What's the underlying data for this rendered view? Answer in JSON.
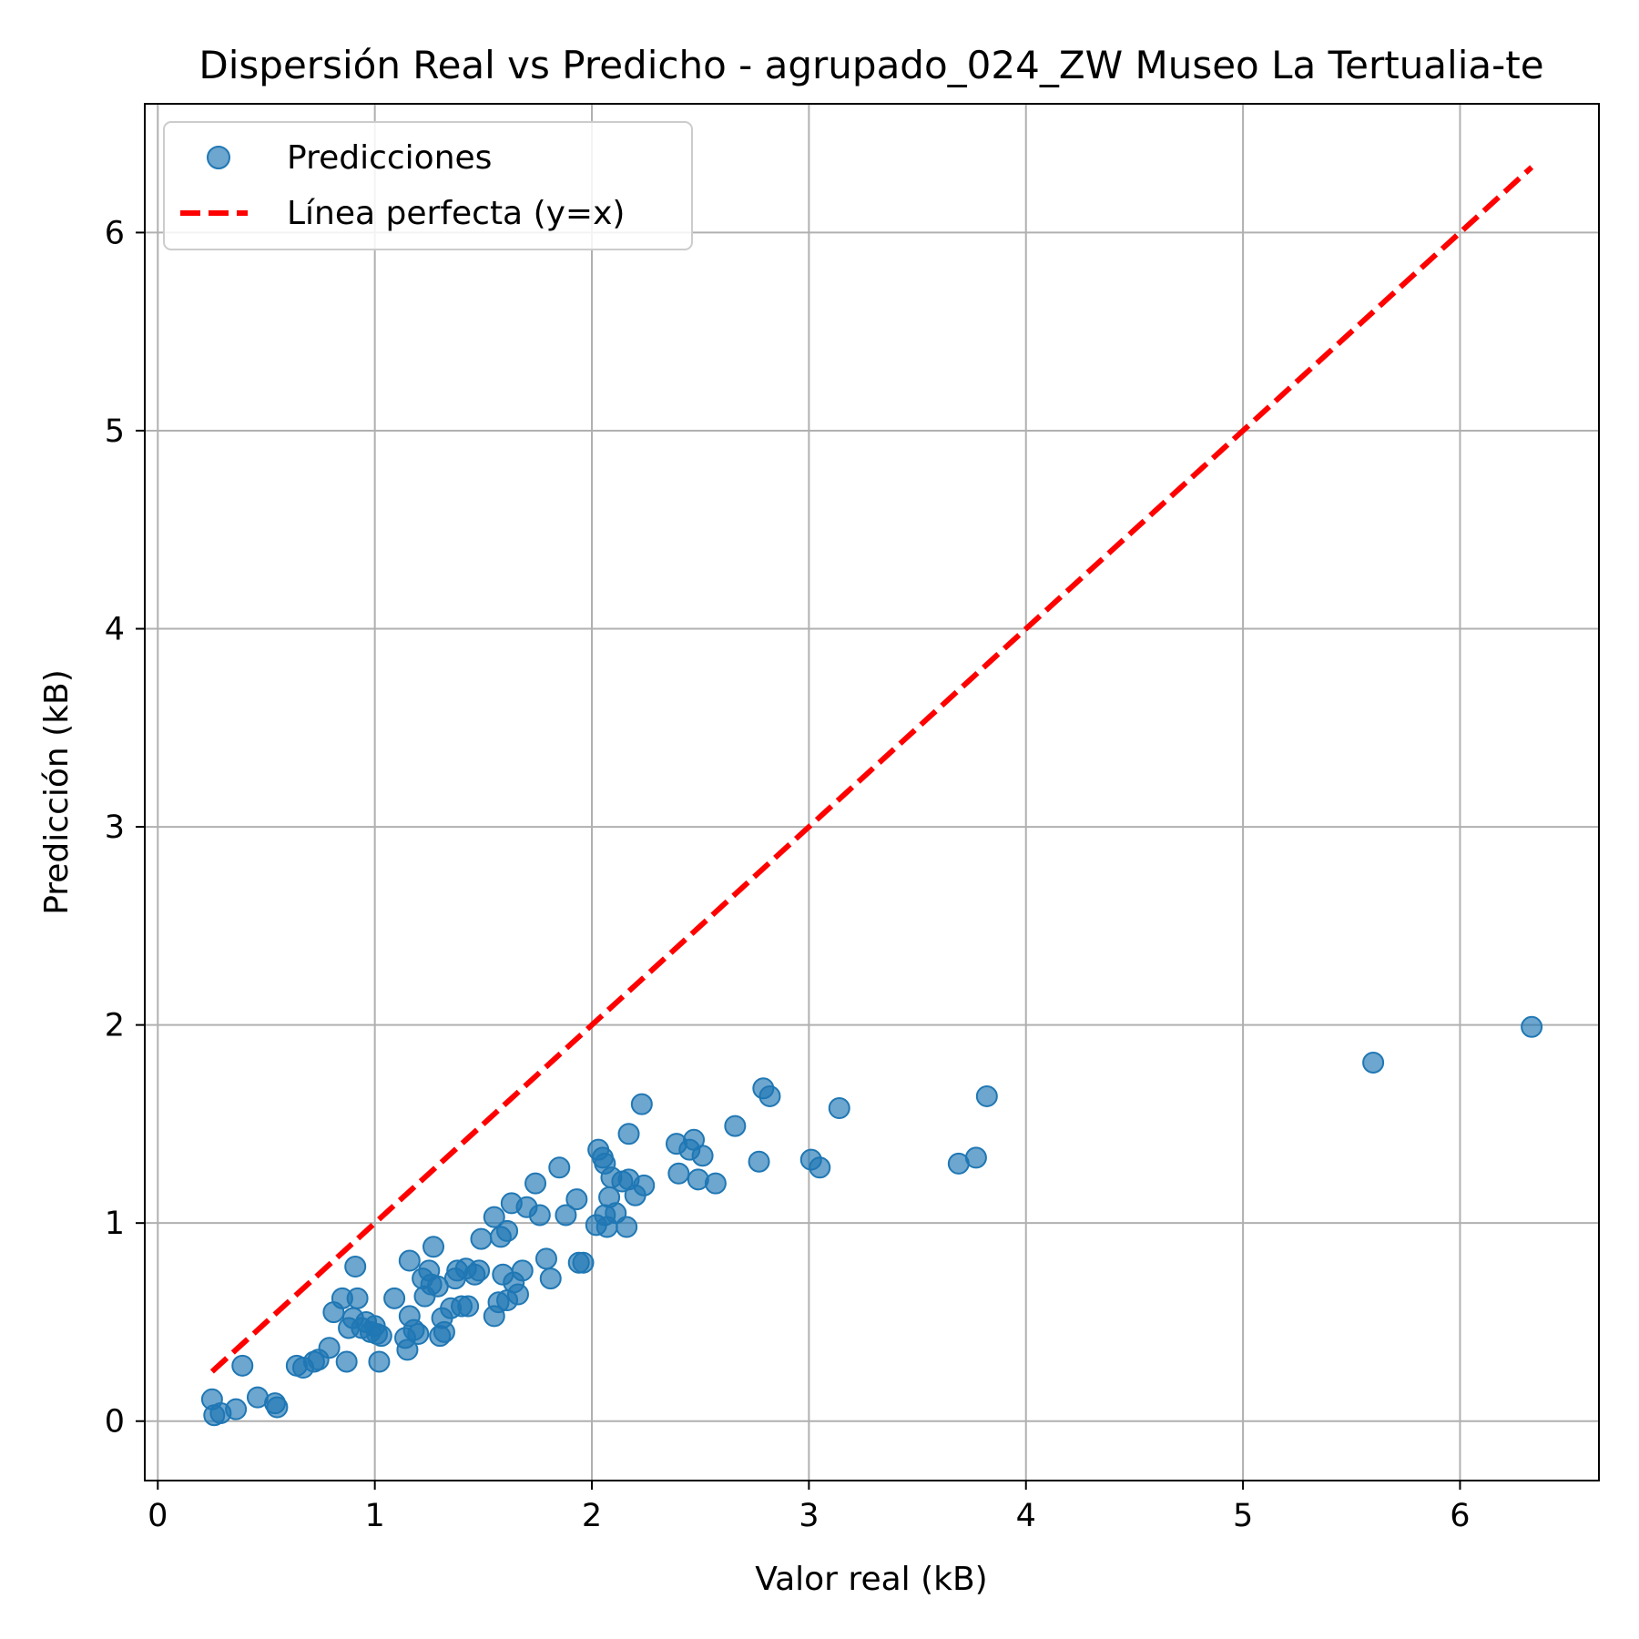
{
  "chart_data": {
    "type": "scatter",
    "title": "Dispersión Real vs Predicho - agrupado_024_ZW Museo La Tertualia-te",
    "xlabel": "Valor real (kB)",
    "ylabel": "Predicción (kB)",
    "xlim": [
      -0.06,
      6.64
    ],
    "ylim": [
      -0.3,
      6.65
    ],
    "xticks": [
      0,
      1,
      2,
      3,
      4,
      5,
      6
    ],
    "yticks": [
      0,
      1,
      2,
      3,
      4,
      5,
      6
    ],
    "grid": true,
    "legend_position": "top-left",
    "colors": {
      "points": "#1f77b4",
      "perfect_line": "#ff0000"
    },
    "series": [
      {
        "name": "Predicciones",
        "marker": "circle",
        "points": [
          [
            0.25,
            0.11
          ],
          [
            0.26,
            0.03
          ],
          [
            0.29,
            0.04
          ],
          [
            0.36,
            0.06
          ],
          [
            0.39,
            0.28
          ],
          [
            0.46,
            0.12
          ],
          [
            0.54,
            0.09
          ],
          [
            0.55,
            0.07
          ],
          [
            0.64,
            0.28
          ],
          [
            0.67,
            0.27
          ],
          [
            0.72,
            0.3
          ],
          [
            0.74,
            0.31
          ],
          [
            0.79,
            0.37
          ],
          [
            0.81,
            0.55
          ],
          [
            0.85,
            0.62
          ],
          [
            0.87,
            0.3
          ],
          [
            0.88,
            0.47
          ],
          [
            0.9,
            0.52
          ],
          [
            0.91,
            0.78
          ],
          [
            0.92,
            0.62
          ],
          [
            0.94,
            0.47
          ],
          [
            0.96,
            0.5
          ],
          [
            0.98,
            0.45
          ],
          [
            1.0,
            0.48
          ],
          [
            1.01,
            0.44
          ],
          [
            1.02,
            0.3
          ],
          [
            1.03,
            0.43
          ],
          [
            1.09,
            0.62
          ],
          [
            1.14,
            0.42
          ],
          [
            1.15,
            0.36
          ],
          [
            1.16,
            0.53
          ],
          [
            1.16,
            0.81
          ],
          [
            1.18,
            0.46
          ],
          [
            1.2,
            0.44
          ],
          [
            1.22,
            0.72
          ],
          [
            1.23,
            0.63
          ],
          [
            1.25,
            0.76
          ],
          [
            1.26,
            0.69
          ],
          [
            1.27,
            0.88
          ],
          [
            1.29,
            0.68
          ],
          [
            1.3,
            0.43
          ],
          [
            1.31,
            0.52
          ],
          [
            1.32,
            0.45
          ],
          [
            1.35,
            0.57
          ],
          [
            1.37,
            0.72
          ],
          [
            1.38,
            0.76
          ],
          [
            1.4,
            0.58
          ],
          [
            1.42,
            0.77
          ],
          [
            1.43,
            0.58
          ],
          [
            1.46,
            0.74
          ],
          [
            1.48,
            0.76
          ],
          [
            1.49,
            0.92
          ],
          [
            1.55,
            0.53
          ],
          [
            1.55,
            1.03
          ],
          [
            1.57,
            0.6
          ],
          [
            1.58,
            0.93
          ],
          [
            1.59,
            0.74
          ],
          [
            1.61,
            0.96
          ],
          [
            1.61,
            0.61
          ],
          [
            1.63,
            1.1
          ],
          [
            1.64,
            0.7
          ],
          [
            1.66,
            0.64
          ],
          [
            1.68,
            0.76
          ],
          [
            1.7,
            1.08
          ],
          [
            1.74,
            1.2
          ],
          [
            1.76,
            1.04
          ],
          [
            1.79,
            0.82
          ],
          [
            1.81,
            0.72
          ],
          [
            1.85,
            1.28
          ],
          [
            1.88,
            1.04
          ],
          [
            1.93,
            1.12
          ],
          [
            1.94,
            0.8
          ],
          [
            1.96,
            0.8
          ],
          [
            2.02,
            0.99
          ],
          [
            2.03,
            1.37
          ],
          [
            2.05,
            1.33
          ],
          [
            2.06,
            1.04
          ],
          [
            2.06,
            1.3
          ],
          [
            2.07,
            0.98
          ],
          [
            2.08,
            1.13
          ],
          [
            2.09,
            1.23
          ],
          [
            2.11,
            1.05
          ],
          [
            2.14,
            1.21
          ],
          [
            2.16,
            0.98
          ],
          [
            2.17,
            1.45
          ],
          [
            2.17,
            1.22
          ],
          [
            2.2,
            1.14
          ],
          [
            2.23,
            1.6
          ],
          [
            2.24,
            1.19
          ],
          [
            2.39,
            1.4
          ],
          [
            2.4,
            1.25
          ],
          [
            2.45,
            1.37
          ],
          [
            2.47,
            1.42
          ],
          [
            2.49,
            1.22
          ],
          [
            2.51,
            1.34
          ],
          [
            2.57,
            1.2
          ],
          [
            2.66,
            1.49
          ],
          [
            2.77,
            1.31
          ],
          [
            2.79,
            1.68
          ],
          [
            2.82,
            1.64
          ],
          [
            3.01,
            1.32
          ],
          [
            3.05,
            1.28
          ],
          [
            3.14,
            1.58
          ],
          [
            3.69,
            1.3
          ],
          [
            3.77,
            1.33
          ],
          [
            3.82,
            1.64
          ],
          [
            5.6,
            1.81
          ],
          [
            6.33,
            1.99
          ]
        ]
      },
      {
        "name": "Línea perfecta (y=x)",
        "style": "dashed",
        "points": [
          [
            0.25,
            0.25
          ],
          [
            6.33,
            6.33
          ]
        ]
      }
    ]
  }
}
